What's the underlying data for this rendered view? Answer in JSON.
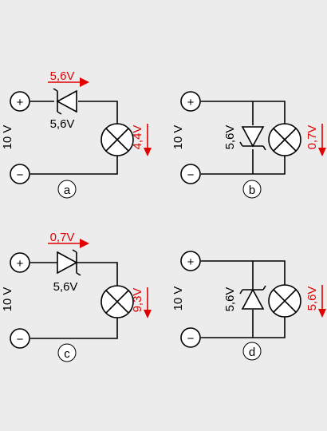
{
  "diagrams": {
    "a": {
      "letter": "a",
      "supply": "10 V",
      "diode_label": "5,6V",
      "diode_drop": "5,6V",
      "lamp_drop": "4,4V"
    },
    "b": {
      "letter": "b",
      "supply": "10 V",
      "diode_label": "5,6V",
      "lamp_drop": "0,7V"
    },
    "c": {
      "letter": "c",
      "supply": "10 V",
      "diode_label": "5,6V",
      "diode_drop": "0,7V",
      "lamp_drop": "9,3V"
    },
    "d": {
      "letter": "d",
      "supply": "10 V",
      "diode_label": "5,6V",
      "lamp_drop": "5,6V"
    }
  },
  "symbols": {
    "plus": "+",
    "minus": "−"
  },
  "colors": {
    "voltage_annotation": "#e00000",
    "background": "#ececec"
  }
}
